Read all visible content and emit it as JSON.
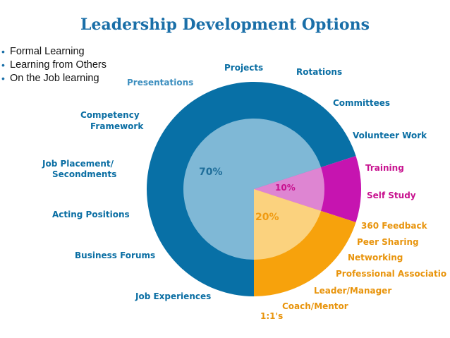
{
  "title": "Leadership Development Options",
  "bullets": [
    "Formal Learning",
    "Learning from Others",
    "On the Job learning"
  ],
  "colors": {
    "title": "#1a6fa8",
    "on_the_job_outer": "#0870a6",
    "on_the_job_inner": "#7fb8d6",
    "formal_outer": "#c614b0",
    "formal_inner": "#de85d2",
    "others_outer": "#f7a20c",
    "others_inner": "#fbd27e",
    "on_the_job_text": "#0a6ea3",
    "formal_text": "#c8128f",
    "others_text": "#e8940c"
  },
  "segments": [
    {
      "id": "on_the_job",
      "percent_label": "70%",
      "share": 0.7
    },
    {
      "id": "formal",
      "percent_label": "10%",
      "share": 0.1
    },
    {
      "id": "others",
      "percent_label": "20%",
      "share": 0.2
    }
  ],
  "labels": {
    "on_the_job": [
      "Projects",
      "Rotations",
      "Committees",
      "Volunteer Work",
      "Presentations",
      "Competency Framework",
      "Job Placement/ Secondments",
      "Acting Positions",
      "Business Forums",
      "Job Experiences"
    ],
    "formal": [
      "Training",
      "Self Study"
    ],
    "others": [
      "360 Feedback",
      "Peer Sharing",
      "Networking",
      "Professional Associatio",
      "Leader/Manager",
      "Coach/Mentor",
      "1:1's"
    ]
  }
}
